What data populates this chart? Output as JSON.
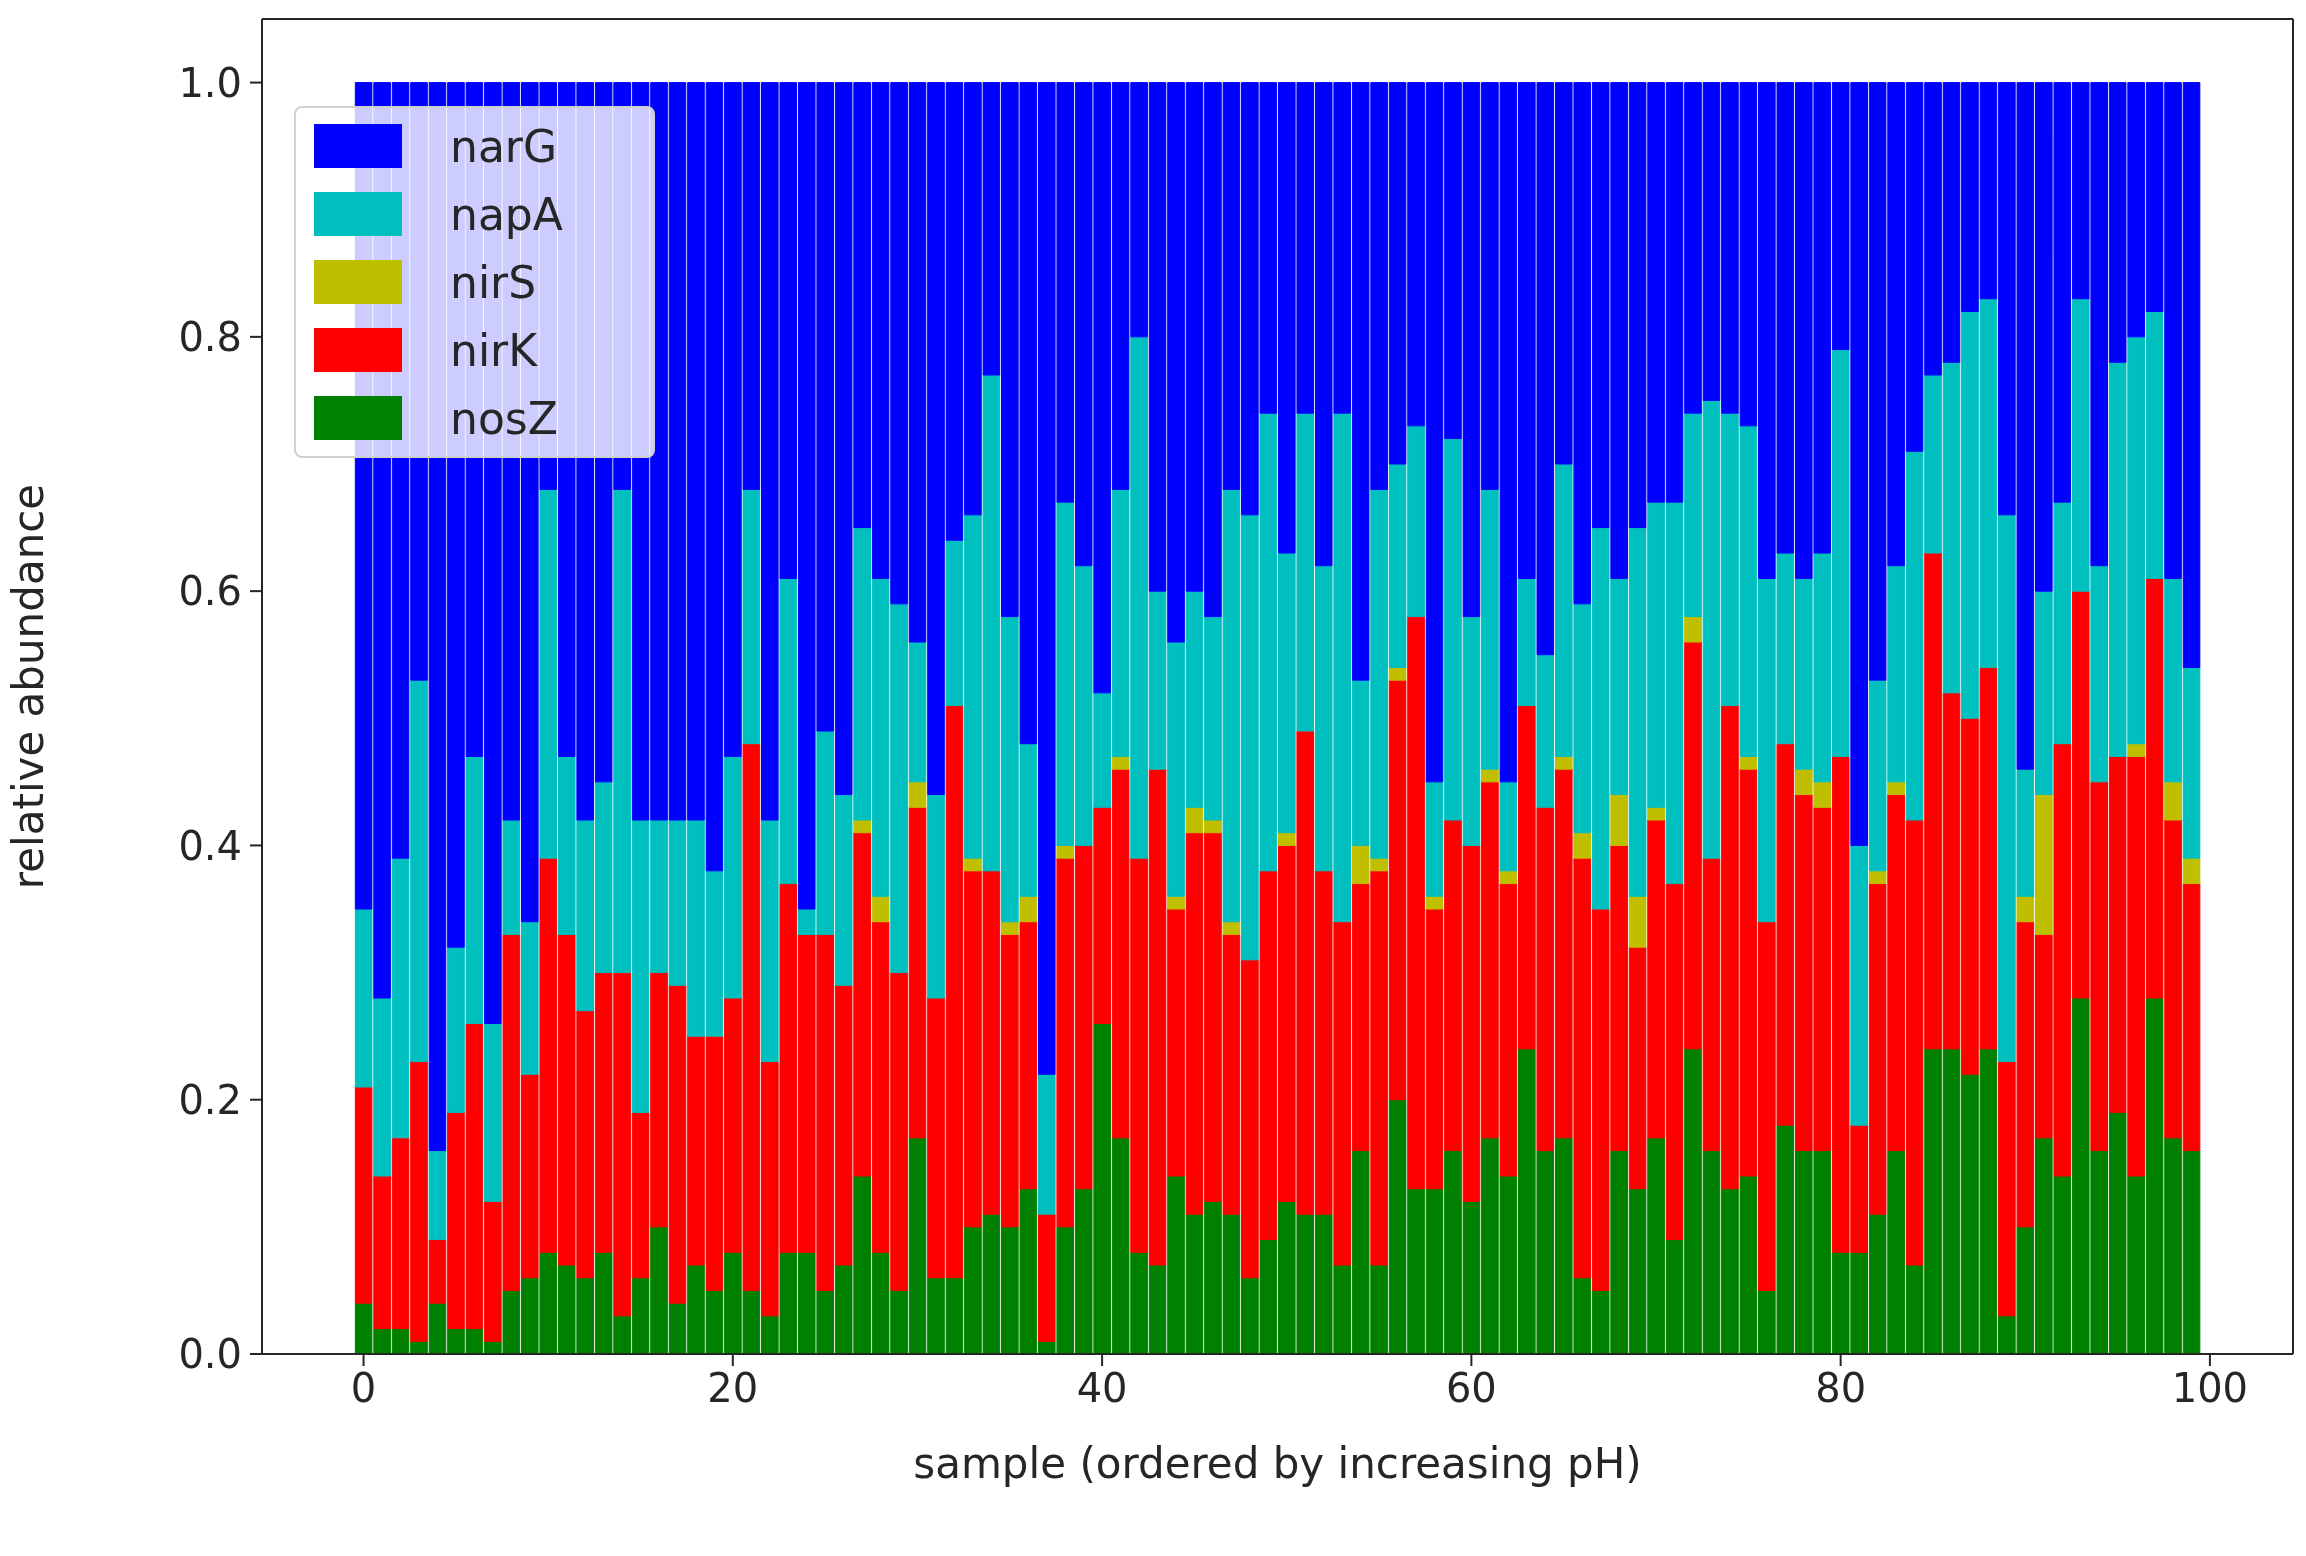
{
  "chart_data": {
    "type": "bar",
    "stacked": true,
    "xlabel": "sample (ordered by increasing pH)",
    "ylabel": "relative abundance",
    "x": [
      0,
      1,
      2,
      3,
      4,
      5,
      6,
      7,
      8,
      9,
      10,
      11,
      12,
      13,
      14,
      15,
      16,
      17,
      18,
      19,
      20,
      21,
      22,
      23,
      24,
      25,
      26,
      27,
      28,
      29,
      30,
      31,
      32,
      33,
      34,
      35,
      36,
      37,
      38,
      39,
      40,
      41,
      42,
      43,
      44,
      45,
      46,
      47,
      48,
      49,
      50,
      51,
      52,
      53,
      54,
      55,
      56,
      57,
      58,
      59,
      60,
      61,
      62,
      63,
      64,
      65,
      66,
      67,
      68,
      69,
      70,
      71,
      72,
      73,
      74,
      75,
      76,
      77,
      78,
      79,
      80,
      81,
      82,
      83,
      84,
      85,
      86,
      87,
      88,
      89,
      90,
      91,
      92,
      93,
      94,
      95,
      96,
      97,
      98,
      99
    ],
    "xlim": [
      -5.5,
      104.5
    ],
    "xticks": [
      0,
      20,
      40,
      60,
      80,
      100
    ],
    "ylim": [
      0,
      1.05
    ],
    "yticks": [
      {
        "value": 0,
        "label": "0.0"
      },
      0.2,
      0.4,
      0.6,
      0.8,
      {
        "value": 1,
        "label": "1.0"
      }
    ],
    "grid": false,
    "legend": "top left",
    "series": [
      {
        "name": "nosZ",
        "color": "#008000",
        "values": [
          0.04,
          0.02,
          0.02,
          0.01,
          0.04,
          0.02,
          0.02,
          0.01,
          0.05,
          0.06,
          0.08,
          0.07,
          0.06,
          0.08,
          0.03,
          0.06,
          0.1,
          0.04,
          0.07,
          0.05,
          0.08,
          0.05,
          0.03,
          0.08,
          0.08,
          0.05,
          0.07,
          0.14,
          0.08,
          0.05,
          0.17,
          0.06,
          0.06,
          0.1,
          0.11,
          0.1,
          0.13,
          0.01,
          0.1,
          0.13,
          0.26,
          0.17,
          0.08,
          0.07,
          0.14,
          0.11,
          0.12,
          0.11,
          0.06,
          0.09,
          0.12,
          0.11,
          0.11,
          0.07,
          0.16,
          0.07,
          0.2,
          0.13,
          0.13,
          0.16,
          0.12,
          0.17,
          0.14,
          0.24,
          0.16,
          0.17,
          0.06,
          0.05,
          0.16,
          0.13,
          0.17,
          0.09,
          0.24,
          0.16,
          0.13,
          0.14,
          0.05,
          0.18,
          0.16,
          0.16,
          0.08,
          0.08,
          0.11,
          0.16,
          0.07,
          0.24,
          0.24,
          0.22,
          0.24,
          0.03,
          0.1,
          0.17,
          0.14,
          0.28,
          0.16,
          0.19,
          0.14,
          0.28,
          0.17,
          0.16
        ]
      },
      {
        "name": "nirK",
        "color": "#ff0000",
        "values": [
          0.17,
          0.12,
          0.15,
          0.22,
          0.05,
          0.17,
          0.24,
          0.11,
          0.28,
          0.16,
          0.31,
          0.26,
          0.21,
          0.22,
          0.27,
          0.13,
          0.2,
          0.25,
          0.18,
          0.2,
          0.2,
          0.43,
          0.2,
          0.29,
          0.25,
          0.28,
          0.22,
          0.27,
          0.26,
          0.25,
          0.26,
          0.22,
          0.45,
          0.28,
          0.27,
          0.23,
          0.21,
          0.1,
          0.29,
          0.27,
          0.17,
          0.29,
          0.31,
          0.39,
          0.21,
          0.3,
          0.29,
          0.22,
          0.25,
          0.29,
          0.28,
          0.38,
          0.27,
          0.27,
          0.21,
          0.31,
          0.33,
          0.45,
          0.22,
          0.26,
          0.28,
          0.28,
          0.23,
          0.27,
          0.27,
          0.29,
          0.33,
          0.3,
          0.24,
          0.19,
          0.25,
          0.28,
          0.32,
          0.23,
          0.38,
          0.32,
          0.29,
          0.3,
          0.28,
          0.27,
          0.39,
          0.1,
          0.26,
          0.28,
          0.35,
          0.39,
          0.28,
          0.28,
          0.3,
          0.2,
          0.24,
          0.16,
          0.34,
          0.32,
          0.29,
          0.28,
          0.33,
          0.33,
          0.25,
          0.21
        ]
      },
      {
        "name": "nirS",
        "color": "#bfbf00",
        "values": [
          0,
          0,
          0,
          0,
          0,
          0,
          0,
          0,
          0,
          0,
          0,
          0,
          0,
          0,
          0,
          0,
          0,
          0,
          0,
          0,
          0,
          0,
          0,
          0,
          0,
          0,
          0,
          0.01,
          0.02,
          0,
          0.02,
          0,
          0,
          0.01,
          0,
          0.01,
          0.02,
          0,
          0.01,
          0,
          0,
          0.01,
          0,
          0,
          0.01,
          0.02,
          0.01,
          0.01,
          0,
          0,
          0.01,
          0,
          0,
          0,
          0.03,
          0.01,
          0.01,
          0,
          0.01,
          0,
          0,
          0.01,
          0.01,
          0,
          0,
          0.01,
          0.02,
          0,
          0.04,
          0.04,
          0.01,
          0,
          0.02,
          0,
          0,
          0.01,
          0,
          0,
          0.02,
          0.02,
          0,
          0,
          0.01,
          0.01,
          0,
          0,
          0,
          0,
          0,
          0,
          0.02,
          0.11,
          0,
          0,
          0,
          0,
          0.01,
          0,
          0.03,
          0.02
        ]
      },
      {
        "name": "napA",
        "color": "#00bfbf",
        "values": [
          0.14,
          0.14,
          0.22,
          0.3,
          0.07,
          0.13,
          0.21,
          0.14,
          0.09,
          0.12,
          0.29,
          0.14,
          0.15,
          0.15,
          0.38,
          0.23,
          0.12,
          0.13,
          0.17,
          0.13,
          0.19,
          0.2,
          0.19,
          0.24,
          0.02,
          0.16,
          0.15,
          0.23,
          0.25,
          0.29,
          0.11,
          0.16,
          0.13,
          0.27,
          0.39,
          0.24,
          0.12,
          0.11,
          0.27,
          0.22,
          0.09,
          0.21,
          0.41,
          0.14,
          0.2,
          0.17,
          0.16,
          0.34,
          0.35,
          0.36,
          0.22,
          0.25,
          0.24,
          0.4,
          0.13,
          0.29,
          0.16,
          0.15,
          0.09,
          0.3,
          0.18,
          0.22,
          0.07,
          0.1,
          0.12,
          0.23,
          0.18,
          0.3,
          0.17,
          0.29,
          0.24,
          0.3,
          0.16,
          0.36,
          0.23,
          0.26,
          0.27,
          0.15,
          0.15,
          0.18,
          0.32,
          0.22,
          0.15,
          0.17,
          0.29,
          0.14,
          0.26,
          0.32,
          0.29,
          0.43,
          0.1,
          0.16,
          0.19,
          0.23,
          0.17,
          0.31,
          0.32,
          0.21,
          0.16,
          0.15
        ]
      },
      {
        "name": "narG",
        "color": "#0000ff",
        "values": [
          0.65,
          0.72,
          0.61,
          0.47,
          0.84,
          0.68,
          0.53,
          0.74,
          0.58,
          0.66,
          0.32,
          0.53,
          0.58,
          0.55,
          0.32,
          0.58,
          0.58,
          0.58,
          0.58,
          0.62,
          0.53,
          0.32,
          0.58,
          0.39,
          0.65,
          0.51,
          0.56,
          0.35,
          0.39,
          0.41,
          0.44,
          0.56,
          0.36,
          0.34,
          0.23,
          0.42,
          0.52,
          0.78,
          0.33,
          0.38,
          0.48,
          0.32,
          0.2,
          0.4,
          0.44,
          0.4,
          0.42,
          0.32,
          0.34,
          0.26,
          0.37,
          0.26,
          0.38,
          0.26,
          0.47,
          0.32,
          0.3,
          0.27,
          0.55,
          0.28,
          0.42,
          0.32,
          0.55,
          0.39,
          0.45,
          0.3,
          0.41,
          0.35,
          0.39,
          0.35,
          0.33,
          0.33,
          0.26,
          0.25,
          0.26,
          0.27,
          0.39,
          0.37,
          0.39,
          0.37,
          0.21,
          0.6,
          0.47,
          0.38,
          0.29,
          0.23,
          0.22,
          0.18,
          0.17,
          0.34,
          0.54,
          0.4,
          0.33,
          0.17,
          0.38,
          0.22,
          0.2,
          0.18,
          0.39,
          0.46
        ]
      }
    ]
  }
}
